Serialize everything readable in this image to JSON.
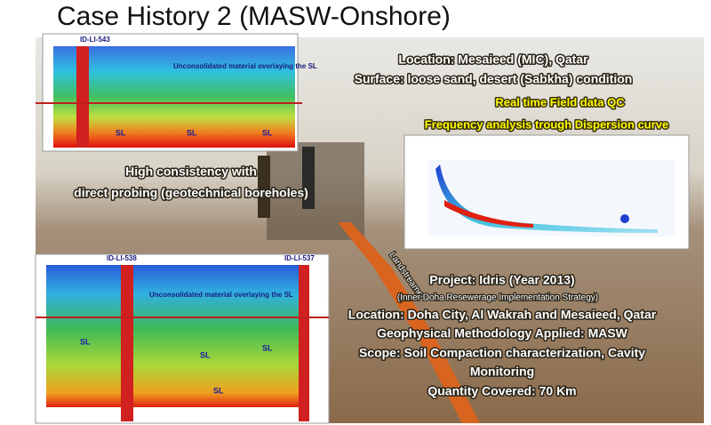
{
  "title": "Case History 2 (MASW-Onshore)",
  "site": {
    "location": "Location: Mesaieed (MIC), Qatar",
    "surface": "Surface: loose sand, desert (Sabkha) condition"
  },
  "qc": {
    "field": "Real time Field data QC",
    "frequency": "Frequency analysis trough Dispersion curve"
  },
  "consistency": [
    "High consistency with",
    "direct probing (geotechnical boreholes)"
  ],
  "project": {
    "name": "Project: Idris (Year 2013)",
    "subtitle": "(Inner Doha Resewerage Implementation Strategy)",
    "lines": [
      "Location: Doha City, Al Wakrah and Mesaieed, Qatar",
      "Geophysical Methodology Applied: MASW",
      "Scope: Soil Compaction characterization, Cavity",
      "Monitoring",
      "Quantity Covered: 70 Km"
    ]
  },
  "photo_label": "Landstreamer",
  "figures": {
    "top": {
      "borehole": "ID-LI-543",
      "note": "Unconsolidated material overlaying the SL",
      "layers": [
        "SL",
        "SL",
        "SL"
      ]
    },
    "bottom": {
      "boreholes": [
        "ID-LI-538",
        "ID-LI-537"
      ],
      "note": "Unconsolidated material overlaying the SL",
      "layers": [
        "SL",
        "SL",
        "SL",
        "SL"
      ]
    }
  }
}
